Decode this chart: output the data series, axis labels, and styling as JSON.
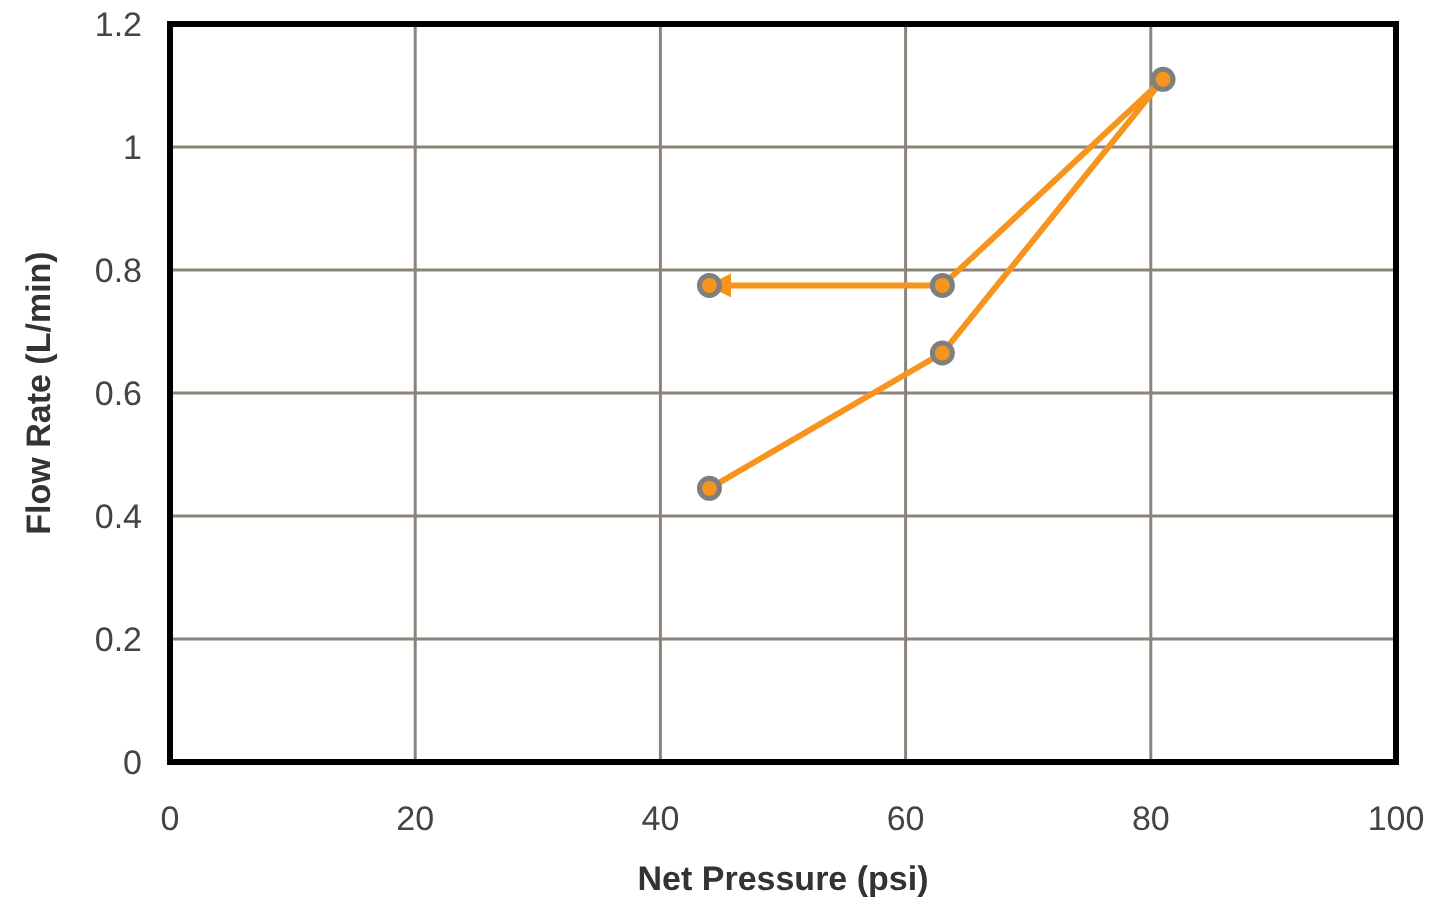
{
  "chart_data": {
    "type": "line",
    "xlabel": "Net Pressure (psi)",
    "ylabel": "Flow Rate (L/min)",
    "xlim": [
      0,
      100
    ],
    "xticks": [
      0,
      20,
      40,
      60,
      80,
      100
    ],
    "ylim": [
      0,
      1.2
    ],
    "yticks": [
      0,
      0.2,
      0.4,
      0.6,
      0.8,
      1,
      1.2
    ],
    "grid": true,
    "marker": "circle",
    "line_style": "solid",
    "series": [
      {
        "color": "#f7941d",
        "x": [
          44,
          63,
          81,
          63,
          44
        ],
        "values": [
          0.445,
          0.665,
          1.11,
          0.775,
          0.775
        ]
      }
    ]
  }
}
